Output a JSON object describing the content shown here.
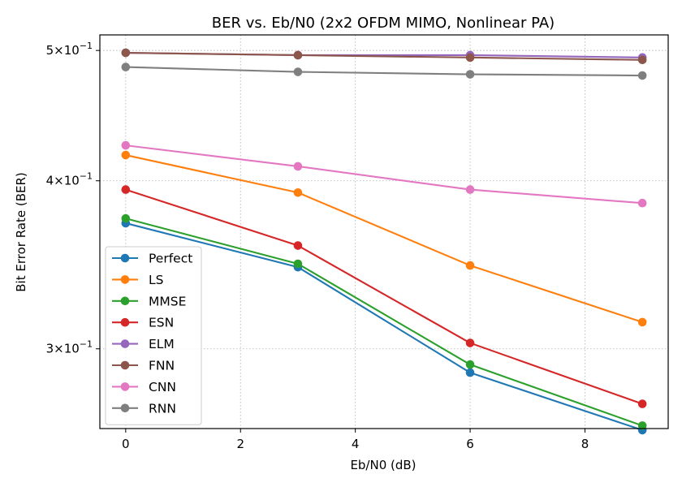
{
  "chart_data": {
    "type": "line",
    "title": "BER vs. Eb/N0 (2x2 OFDM MIMO, Nonlinear PA)",
    "xlabel": "Eb/N0 (dB)",
    "ylabel": "Bit Error Rate (BER)",
    "yscale": "log",
    "grid": true,
    "legend_position": "lower-left",
    "xlim": [
      -0.45,
      9.45
    ],
    "ylim": [
      0.2617,
      0.5135
    ],
    "x_ticks": [
      {
        "value": 0,
        "label": "0"
      },
      {
        "value": 2,
        "label": "2"
      },
      {
        "value": 4,
        "label": "4"
      },
      {
        "value": 6,
        "label": "6"
      },
      {
        "value": 8,
        "label": "8"
      }
    ],
    "y_ticks": [
      {
        "value": 0.3,
        "mantissa": "3",
        "exponent": "−1"
      },
      {
        "value": 0.4,
        "mantissa": "4",
        "exponent": "−1"
      },
      {
        "value": 0.5,
        "mantissa": "5",
        "exponent": "−1"
      }
    ],
    "x": [
      0,
      3,
      6,
      9
    ],
    "series": [
      {
        "name": "Perfect",
        "color": "#1f77b4",
        "values": [
          0.372,
          0.345,
          0.288,
          0.261
        ]
      },
      {
        "name": "LS",
        "color": "#ff7f0e",
        "values": [
          0.418,
          0.392,
          0.346,
          0.314
        ]
      },
      {
        "name": "MMSE",
        "color": "#2ca02c",
        "values": [
          0.375,
          0.347,
          0.292,
          0.263
        ]
      },
      {
        "name": "ESN",
        "color": "#d62728",
        "values": [
          0.394,
          0.358,
          0.303,
          0.273
        ]
      },
      {
        "name": "ELM",
        "color": "#9467bd",
        "values": [
          0.498,
          0.496,
          0.496,
          0.494
        ]
      },
      {
        "name": "FNN",
        "color": "#8c564b",
        "values": [
          0.498,
          0.496,
          0.494,
          0.492
        ]
      },
      {
        "name": "CNN",
        "color": "#e377c2",
        "values": [
          0.425,
          0.41,
          0.394,
          0.385
        ]
      },
      {
        "name": "RNN",
        "color": "#7f7f7f",
        "values": [
          0.486,
          0.482,
          0.48,
          0.479
        ]
      }
    ]
  }
}
